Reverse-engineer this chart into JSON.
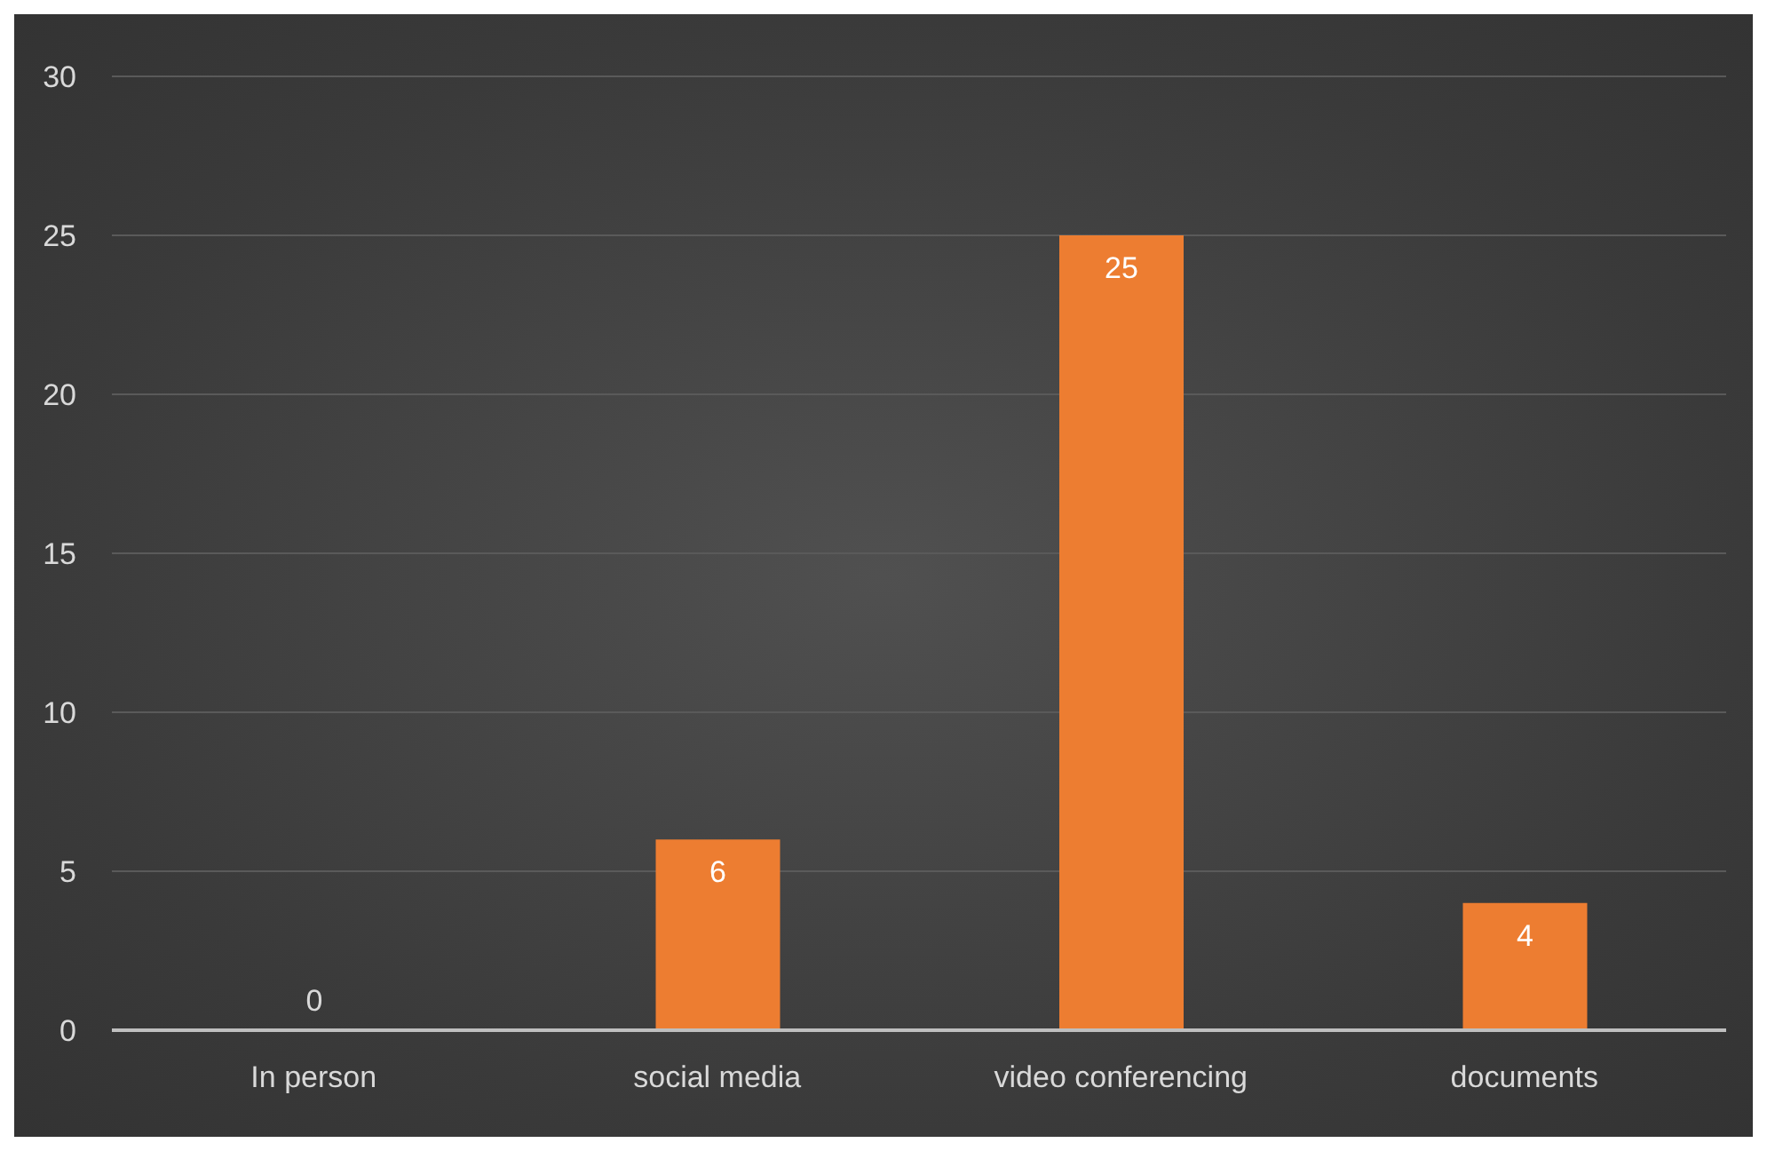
{
  "chart_data": {
    "type": "bar",
    "categories": [
      "In person",
      "social media",
      "video conferencing",
      "documents"
    ],
    "values": [
      0,
      6,
      25,
      4
    ],
    "color": "#ed7d31",
    "ylim": [
      0,
      30
    ],
    "yticks": [
      0,
      5,
      10,
      15,
      20,
      25,
      30
    ],
    "grid": "y",
    "data_labels": true
  }
}
